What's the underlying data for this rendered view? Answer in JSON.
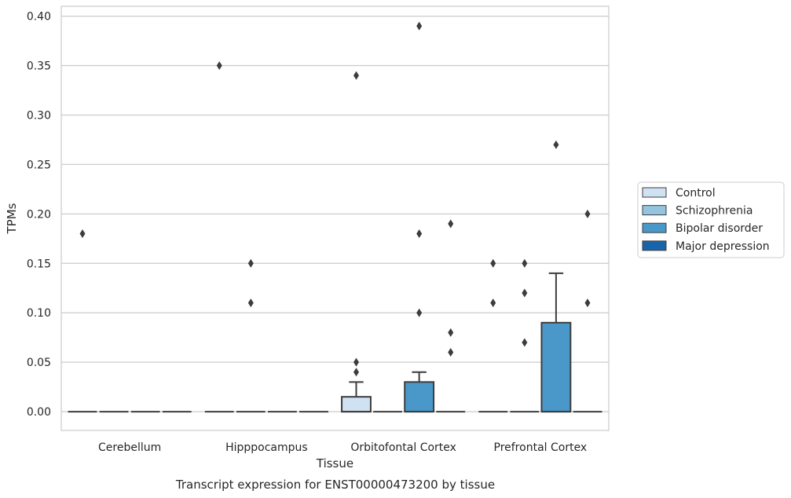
{
  "chart_data": {
    "type": "box",
    "title": "",
    "caption": "Transcript expression for ENST00000473200 by tissue",
    "xlabel": "Tissue",
    "ylabel": "TPMs",
    "ylim": [
      -0.019,
      0.41
    ],
    "yticks": [
      0.0,
      0.05,
      0.1,
      0.15,
      0.2,
      0.25,
      0.3,
      0.35,
      0.4
    ],
    "ytick_labels": [
      "0.00",
      "0.05",
      "0.10",
      "0.15",
      "0.20",
      "0.25",
      "0.30",
      "0.35",
      "0.40"
    ],
    "grid": "horizontal",
    "legend_position": "right",
    "categories": [
      "Cerebellum",
      "Hipppocampus",
      "Orbitofontal Cortex",
      "Prefrontal Cortex"
    ],
    "series": [
      {
        "name": "Control",
        "color": "#d0e1f2",
        "boxes": [
          {
            "q1": 0,
            "median": 0,
            "q3": 0,
            "whisker_low": 0,
            "whisker_high": 0,
            "outliers": [
              0.18
            ]
          },
          {
            "q1": 0,
            "median": 0,
            "q3": 0,
            "whisker_low": 0,
            "whisker_high": 0,
            "outliers": [
              0.35
            ]
          },
          {
            "q1": 0,
            "median": 0,
            "q3": 0.015,
            "whisker_low": 0,
            "whisker_high": 0.03,
            "outliers": [
              0.04,
              0.05,
              0.34
            ]
          },
          {
            "q1": 0,
            "median": 0,
            "q3": 0,
            "whisker_low": 0,
            "whisker_high": 0,
            "outliers": [
              0.11,
              0.15
            ]
          }
        ]
      },
      {
        "name": "Schizophrenia",
        "color": "#94c4df",
        "boxes": [
          {
            "q1": 0,
            "median": 0,
            "q3": 0,
            "whisker_low": 0,
            "whisker_high": 0,
            "outliers": []
          },
          {
            "q1": 0,
            "median": 0,
            "q3": 0,
            "whisker_low": 0,
            "whisker_high": 0,
            "outliers": [
              0.15,
              0.11
            ]
          },
          {
            "q1": 0,
            "median": 0,
            "q3": 0,
            "whisker_low": 0,
            "whisker_high": 0,
            "outliers": []
          },
          {
            "q1": 0,
            "median": 0,
            "q3": 0,
            "whisker_low": 0,
            "whisker_high": 0,
            "outliers": [
              0.07,
              0.12,
              0.15
            ]
          }
        ]
      },
      {
        "name": "Bipolar disorder",
        "color": "#4a98c9",
        "boxes": [
          {
            "q1": 0,
            "median": 0,
            "q3": 0,
            "whisker_low": 0,
            "whisker_high": 0,
            "outliers": []
          },
          {
            "q1": 0,
            "median": 0,
            "q3": 0,
            "whisker_low": 0,
            "whisker_high": 0,
            "outliers": []
          },
          {
            "q1": 0,
            "median": 0,
            "q3": 0.03,
            "whisker_low": 0,
            "whisker_high": 0.04,
            "outliers": [
              0.1,
              0.18,
              0.39
            ]
          },
          {
            "q1": 0,
            "median": 0,
            "q3": 0.09,
            "whisker_low": 0,
            "whisker_high": 0.14,
            "outliers": [
              0.27
            ]
          }
        ]
      },
      {
        "name": "Major depression",
        "color": "#1764ab",
        "boxes": [
          {
            "q1": 0,
            "median": 0,
            "q3": 0,
            "whisker_low": 0,
            "whisker_high": 0,
            "outliers": []
          },
          {
            "q1": 0,
            "median": 0,
            "q3": 0,
            "whisker_low": 0,
            "whisker_high": 0,
            "outliers": []
          },
          {
            "q1": 0,
            "median": 0,
            "q3": 0,
            "whisker_low": 0,
            "whisker_high": 0,
            "outliers": [
              0.06,
              0.08,
              0.19
            ]
          },
          {
            "q1": 0,
            "median": 0,
            "q3": 0,
            "whisker_low": 0,
            "whisker_high": 0,
            "outliers": [
              0.11,
              0.2
            ]
          }
        ]
      }
    ]
  }
}
